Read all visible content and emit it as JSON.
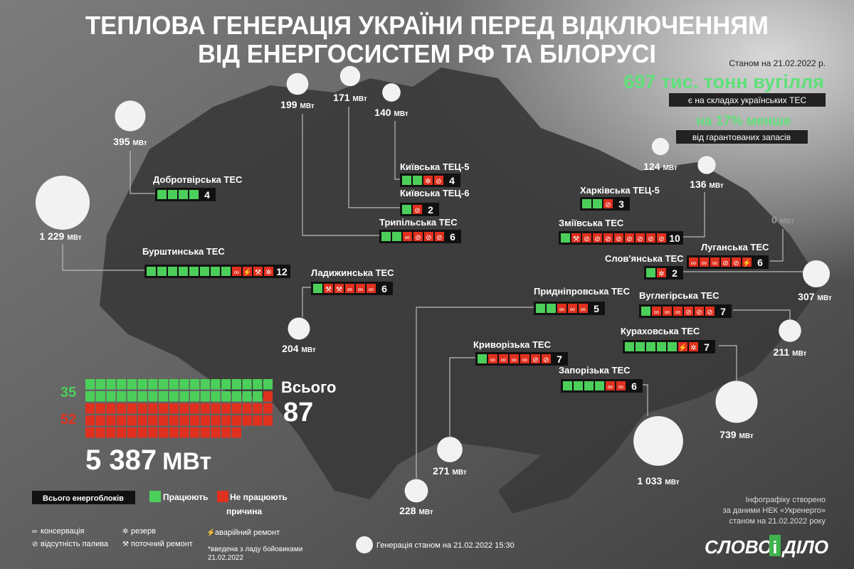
{
  "header": {
    "title": [
      "ТЕПЛОВА ГЕНЕРАЦІЯ УКРАЇНИ ПЕРЕД ВІДКЛЮЧЕННЯМ",
      "ВІД ЕНЕРГОСИСТЕМ РФ ТА БІЛОРУСІ"
    ]
  },
  "coal": {
    "date": "Станом на 21.02.2022 р.",
    "amount": "697 тис. тонн вугілля",
    "amount_note": "є на складах українських ТЕС",
    "deficit": "на 17% менше",
    "deficit_note": "від гарантованих запасів"
  },
  "units": {
    "mw": "МВт"
  },
  "plants": [
    {
      "name": "Добротвірська ТЕС",
      "total": 4,
      "working": 4,
      "reasons": [],
      "mw": {
        "value": 395,
        "label": "395"
      }
    },
    {
      "name": "Бурштинська ТЕС",
      "total": 12,
      "working": 8,
      "reasons": [
        "∞",
        "⚡",
        "⚒",
        "✲"
      ],
      "mw": {
        "value": 1229,
        "label": "1 229"
      }
    },
    {
      "name": "Київська ТЕЦ-5",
      "total": 4,
      "working": 2,
      "reasons": [
        "✲",
        "⊘"
      ],
      "mw": {
        "value": 140,
        "label": "140"
      }
    },
    {
      "name": "Київська ТЕЦ-6",
      "total": 2,
      "working": 1,
      "reasons": [
        "⊘"
      ],
      "mw": {
        "value": 171,
        "label": "171"
      }
    },
    {
      "name": "Трипільська ТЕС",
      "total": 6,
      "working": 2,
      "reasons": [
        "∞",
        "⊘",
        "⊘",
        "⊘"
      ],
      "mw": {
        "value": 199,
        "label": "199"
      }
    },
    {
      "name": "Ладижинська ТЕС",
      "total": 6,
      "working": 1,
      "reasons": [
        "⚒",
        "⚒",
        "∞",
        "∞",
        "∞"
      ],
      "mw": {
        "value": 204,
        "label": "204"
      }
    },
    {
      "name": "Харківська ТЕЦ-5",
      "total": 3,
      "working": 2,
      "reasons": [
        "⊘"
      ],
      "mw": {
        "value": 124,
        "label": "124"
      }
    },
    {
      "name": "Зміївська ТЕС",
      "total": 10,
      "working": 1,
      "reasons": [
        "⚒",
        "⊘",
        "⊘",
        "⊘",
        "⊘",
        "⊘",
        "⊘",
        "⊘",
        "⊘"
      ],
      "mw": {
        "value": 136,
        "label": "136"
      }
    },
    {
      "name": "Слов'янська ТЕС",
      "total": 2,
      "working": 1,
      "reasons": [
        "✲"
      ],
      "mw": {
        "value": 307,
        "label": "307"
      }
    },
    {
      "name": "Луганська ТЕС",
      "total": 6,
      "working": 0,
      "reasons": [
        "∞",
        "∞",
        "∞",
        "⊘",
        "⊘",
        "⚡"
      ],
      "mw": {
        "value": 0,
        "label": "0"
      }
    },
    {
      "name": "Придніпровська ТЕС",
      "total": 5,
      "working": 2,
      "reasons": [
        "∞",
        "∞",
        "∞"
      ],
      "mw": {
        "value": 228,
        "label": "228"
      }
    },
    {
      "name": "Вуглегірська ТЕС",
      "total": 7,
      "working": 1,
      "reasons": [
        "∞",
        "∞",
        "∞",
        "⊘",
        "⊘",
        "⊘"
      ],
      "mw": {
        "value": 211,
        "label": "211"
      }
    },
    {
      "name": "Криворізька ТЕС",
      "total": 7,
      "working": 1,
      "reasons": [
        "∞",
        "∞",
        "∞",
        "∞",
        "⊘",
        "⊘"
      ],
      "mw": {
        "value": 271,
        "label": "271"
      }
    },
    {
      "name": "Кураховська ТЕС",
      "total": 7,
      "working": 5,
      "reasons": [
        "⚡",
        "✲"
      ],
      "mw": {
        "value": 739,
        "label": "739"
      }
    },
    {
      "name": "Запорізька ТЕС",
      "total": 6,
      "working": 4,
      "reasons": [
        "∞",
        "∞"
      ],
      "mw": {
        "value": 1033,
        "label": "1 033"
      }
    }
  ],
  "summary": {
    "working": 35,
    "not_working": 52,
    "total_label": "Всього",
    "total": 87,
    "total_mw": {
      "value": 5387,
      "label": "5 387"
    }
  },
  "legend": {
    "title": "Всього енергоблоків",
    "working": "Працюють",
    "not_working": "Не працюють",
    "reason_title": "причина",
    "reasons": [
      {
        "icon": "∞",
        "label": "консервація",
        "color": "#ffffff"
      },
      {
        "icon": "⊘",
        "label": "відсутність палива",
        "color": "#ffffff"
      },
      {
        "icon": "✲",
        "label": "резерв",
        "color": "#ffffff"
      },
      {
        "icon": "⚒",
        "label": "поточний ремонт",
        "color": "#ffffff"
      },
      {
        "icon": "⚡",
        "label": "аварійний ремонт",
        "color": "#f5d000"
      }
    ],
    "note": [
      "*введена з ладу бойовиками",
      "21.02.2022"
    ],
    "generation": "Генерація станом на 21.02.2022 15:30"
  },
  "source": [
    "Інфографіку створено",
    "за даними НЕК «Укренерго»",
    "станом на 21.02.2022 року"
  ],
  "logo": [
    "СЛОВО",
    "і",
    "ДІЛО"
  ]
}
